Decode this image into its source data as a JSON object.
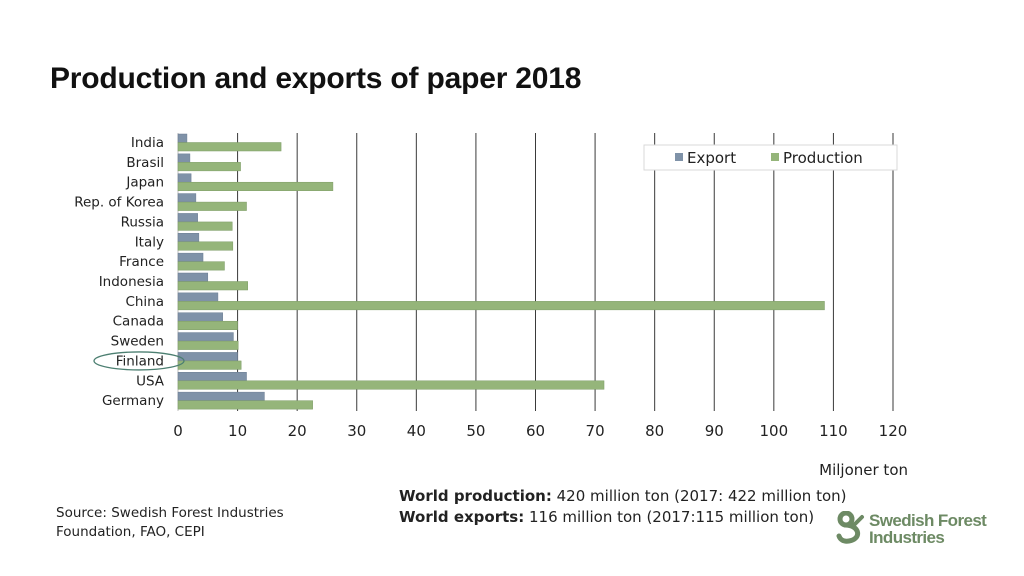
{
  "title": "Production and exports of paper 2018",
  "chart_data": {
    "type": "bar",
    "orientation": "horizontal",
    "categories": [
      "India",
      "Brasil",
      "Japan",
      "Rep. of Korea",
      "Russia",
      "Italy",
      "France",
      "Indonesia",
      "China",
      "Canada",
      "Sweden",
      "Finland",
      "USA",
      "Germany"
    ],
    "series": [
      {
        "name": "Export",
        "color": "#7f92a8",
        "values": [
          1.5,
          2,
          2.2,
          3,
          3.3,
          3.5,
          4.2,
          5,
          6.7,
          7.5,
          9.3,
          10,
          11.5,
          14.5
        ]
      },
      {
        "name": "Production",
        "color": "#95b57a",
        "values": [
          17.3,
          10.5,
          26,
          11.5,
          9.1,
          9.2,
          7.8,
          11.7,
          108.5,
          10,
          10.1,
          10.6,
          71.5,
          22.6
        ]
      }
    ],
    "xlim": [
      0,
      120
    ],
    "xticks": [
      0,
      10,
      20,
      30,
      40,
      50,
      60,
      70,
      80,
      90,
      100,
      110,
      120
    ],
    "xlabel": "Miljoner ton",
    "grid": "vertical",
    "legend": "top-right",
    "highlight": {
      "category": "Finland",
      "color": "#4c7f71"
    }
  },
  "stats": {
    "production_label": "World production:",
    "production_value": "420 million ton (2017:  422 million ton)",
    "exports_label": "World exports:",
    "exports_value": "116 million ton (2017:115 million ton)"
  },
  "source": "Source: Swedish Forest Industries Foundation, FAO, CEPI",
  "logo": {
    "line1": "Swedish Forest",
    "line2": "Industries",
    "color": "#6d8a64"
  }
}
